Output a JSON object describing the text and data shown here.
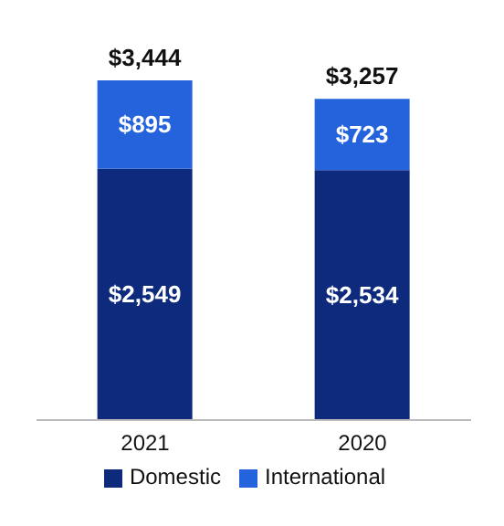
{
  "chart_data": {
    "type": "bar",
    "stacked": true,
    "categories": [
      "2021",
      "2020"
    ],
    "series": [
      {
        "name": "Domestic",
        "color": "#0d2a7c",
        "values": [
          2549,
          2534
        ],
        "value_labels": [
          "$2,549",
          "$2,534"
        ]
      },
      {
        "name": "International",
        "color": "#2563dc",
        "values": [
          895,
          723
        ],
        "value_labels": [
          "$895",
          "$723"
        ]
      }
    ],
    "totals": [
      "$3,444",
      "$3,257"
    ],
    "legend": "bottom",
    "grid": false
  }
}
